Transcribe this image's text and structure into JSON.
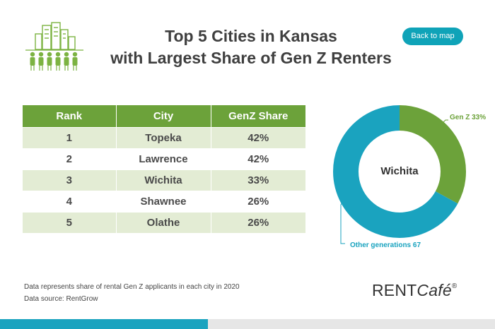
{
  "header": {
    "title_line1": "Top 5 Cities in Kansas",
    "title_line2": "with Largest Share of Gen Z Renters",
    "back_button": "Back to map",
    "logo_icon": "city-renters-icon"
  },
  "table": {
    "headers": [
      "Rank",
      "City",
      "GenZ Share"
    ],
    "rows": [
      [
        "1",
        "Topeka",
        "42%"
      ],
      [
        "2",
        "Lawrence",
        "42%"
      ],
      [
        "3",
        "Wichita",
        "33%"
      ],
      [
        "4",
        "Shawnee",
        "26%"
      ],
      [
        "5",
        "Olathe",
        "26%"
      ]
    ]
  },
  "chart_data": {
    "type": "pie",
    "title": "Wichita",
    "series": [
      {
        "name": "Gen Z 33%",
        "value": 33,
        "color": "#6ca23a"
      },
      {
        "name": "Other generations 67",
        "value": 67,
        "color": "#1aa3bf"
      }
    ]
  },
  "footer": {
    "note": "Data represents share of rental Gen Z applicants in each city in 2020",
    "source": "Data source: RentGrow",
    "brand_rent": "RENT",
    "brand_cafe": "Café",
    "brand_reg": "®"
  },
  "colors": {
    "accent_green": "#6ca23a",
    "accent_blue": "#1aa3bf",
    "row_tint": "#e3ecd4"
  }
}
